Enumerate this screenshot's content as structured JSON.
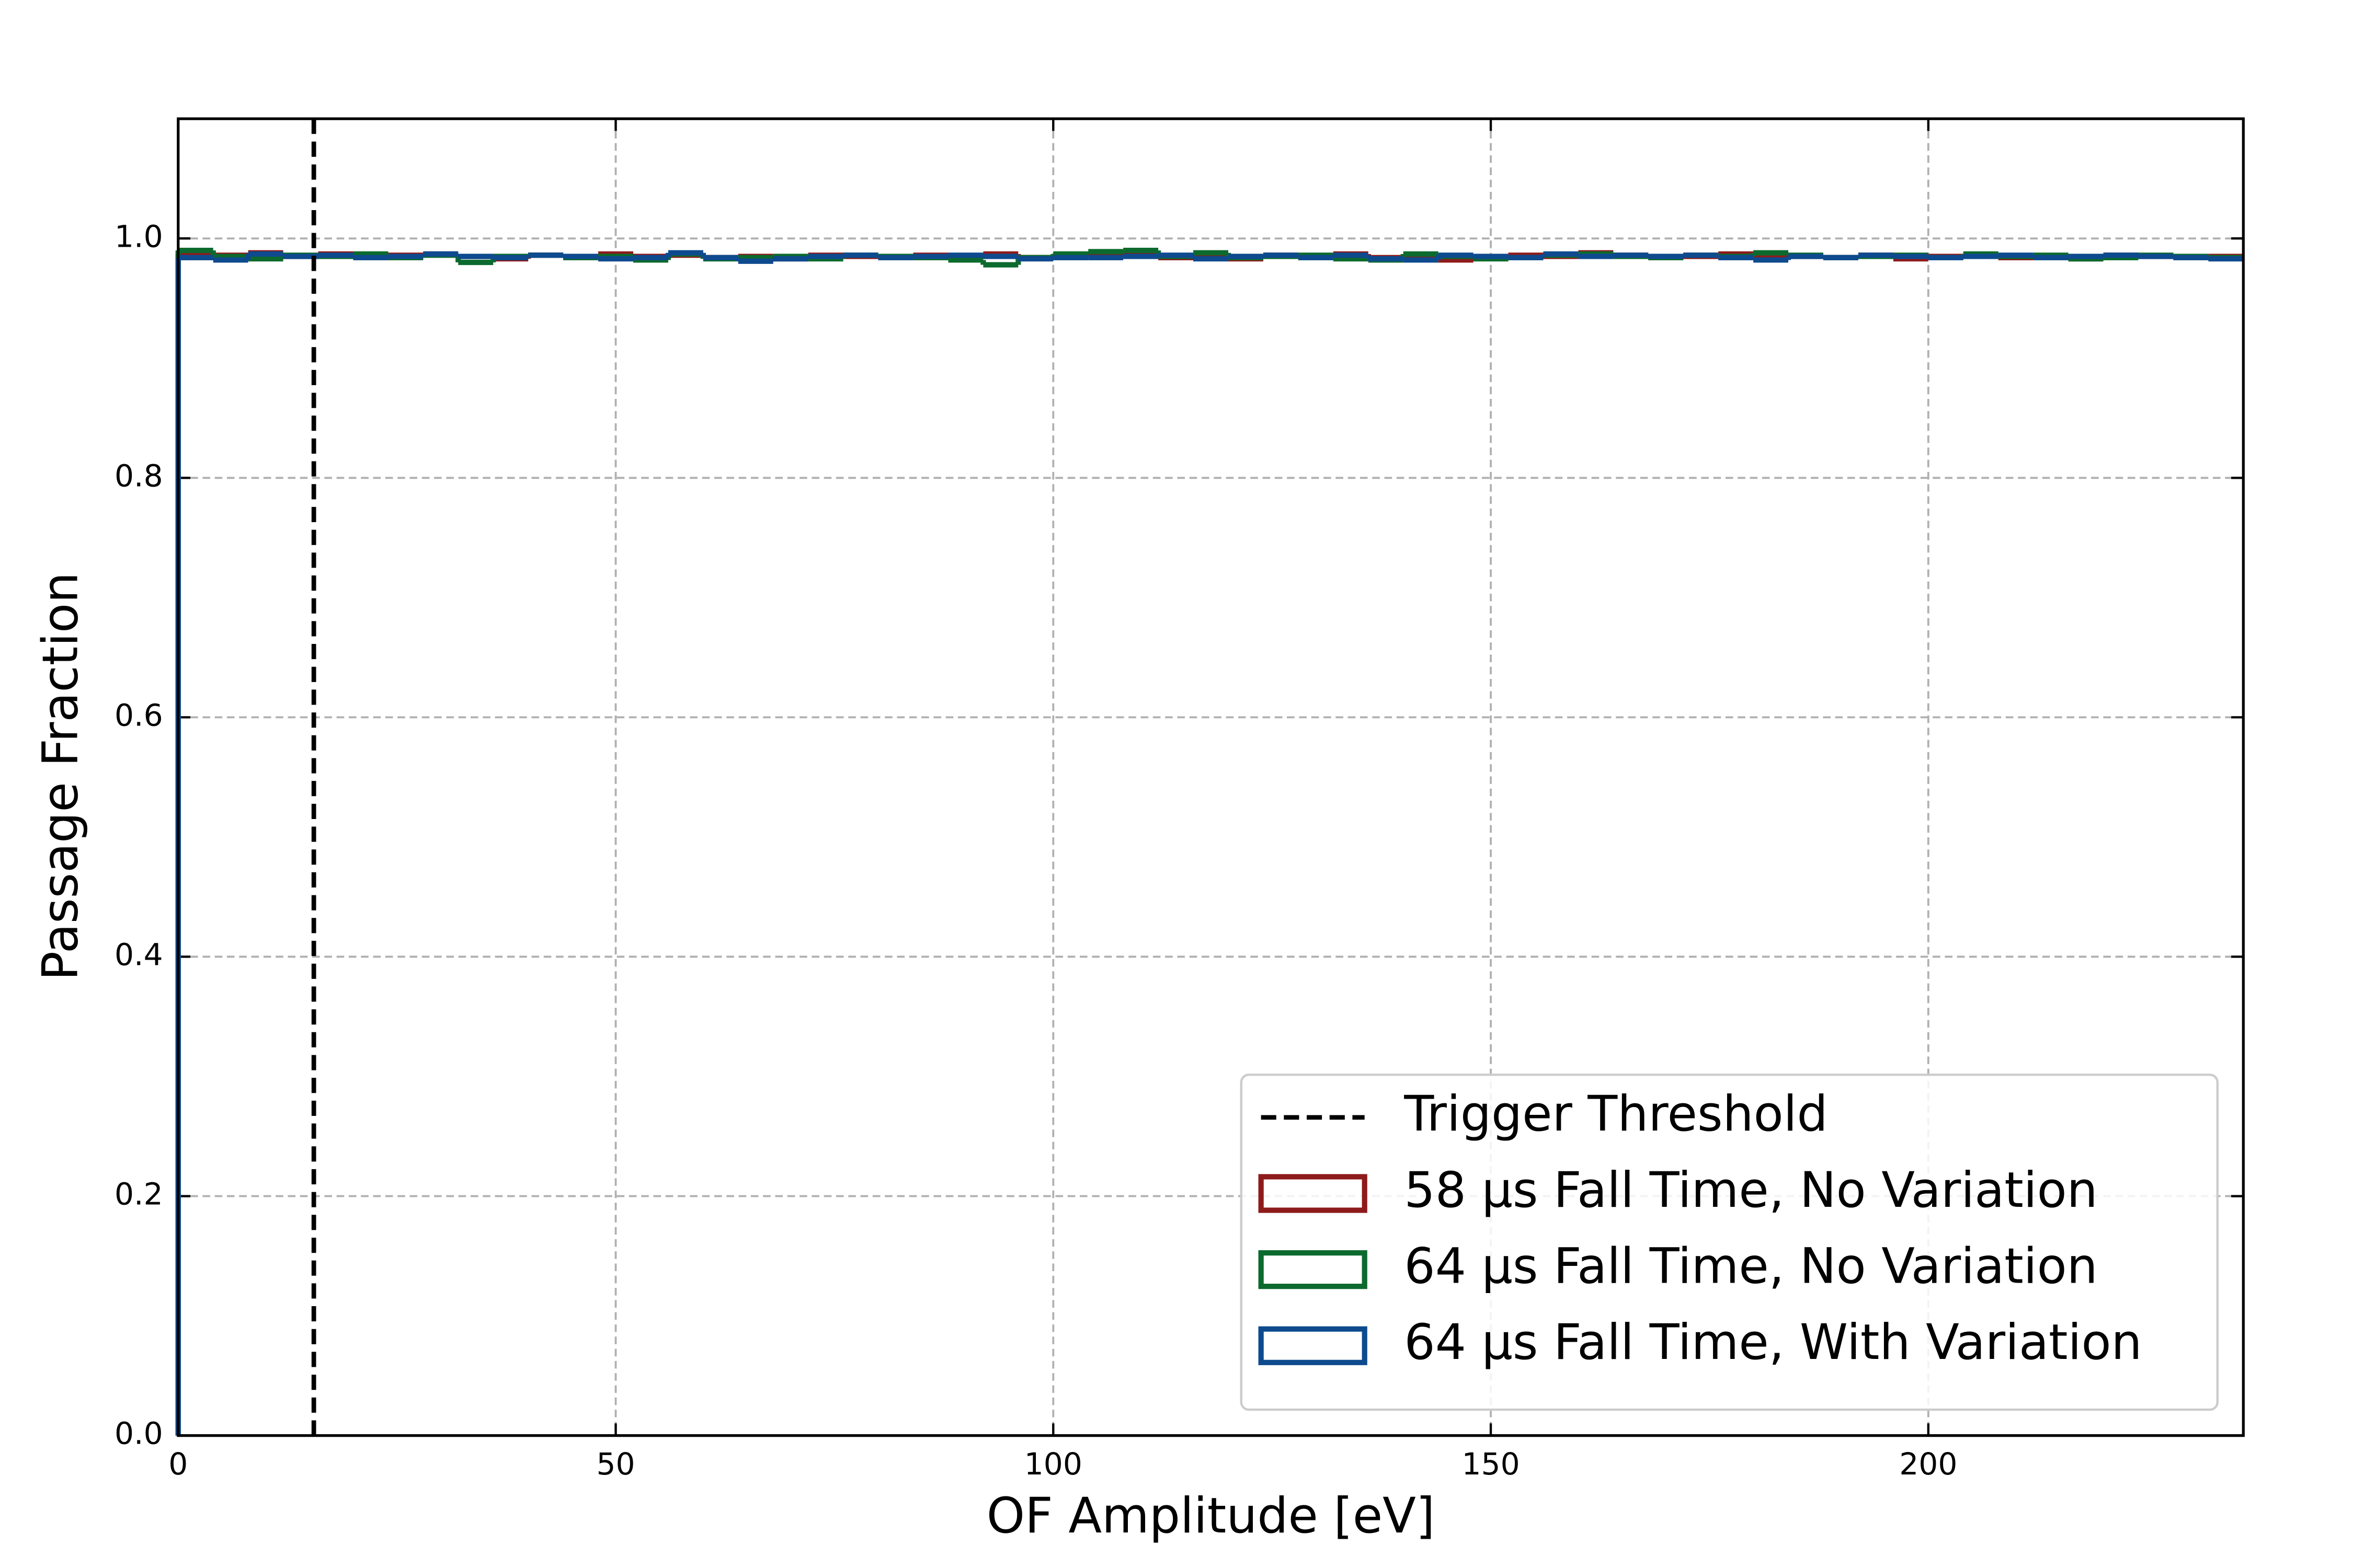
{
  "chart_data": {
    "type": "step-histogram",
    "xlabel": "OF Amplitude [eV]",
    "ylabel": "Passage Fraction",
    "xlim": [
      0,
      236
    ],
    "ylim": [
      0,
      1.1
    ],
    "xticks": [
      0,
      50,
      100,
      150,
      200
    ],
    "yticks": [
      {
        "value": 0,
        "label": "0.0"
      },
      0.2,
      0.4,
      0.6,
      0.8,
      {
        "value": 1,
        "label": "1.0"
      }
    ],
    "grid": true,
    "legend": "lower right",
    "bins": [
      0,
      4,
      8,
      12,
      16,
      20,
      24,
      28,
      32,
      36,
      40,
      44,
      48,
      52,
      56,
      60,
      64,
      68,
      72,
      76,
      80,
      84,
      88,
      92,
      96,
      100,
      104,
      108,
      112,
      116,
      120,
      124,
      128,
      132,
      136,
      140,
      144,
      148,
      152,
      156,
      160,
      164,
      168,
      172,
      176,
      180,
      184,
      188,
      192,
      196,
      200,
      204,
      208,
      212,
      216,
      220,
      224,
      228,
      232,
      236
    ],
    "vlines": [
      {
        "x": 15.5,
        "label": "Trigger Threshold",
        "color": "#000000"
      }
    ],
    "series": [
      {
        "name": "58 µs Fall Time, No Variation",
        "color": "#8e1b1b",
        "values": [
          0.987,
          0.986,
          0.988,
          0.985,
          0.987,
          0.984,
          0.986,
          0.987,
          0.985,
          0.983,
          0.986,
          0.984,
          0.987,
          0.985,
          0.986,
          0.984,
          0.985,
          0.983,
          0.986,
          0.985,
          0.984,
          0.986,
          0.985,
          0.987,
          0.984,
          0.985,
          0.987,
          0.986,
          0.984,
          0.985,
          0.983,
          0.986,
          0.985,
          0.987,
          0.984,
          0.985,
          0.982,
          0.984,
          0.986,
          0.985,
          0.988,
          0.986,
          0.984,
          0.985,
          0.987,
          0.986,
          0.985,
          0.984,
          0.986,
          0.983,
          0.985,
          0.986,
          0.984,
          0.985,
          0.983,
          0.986,
          0.985,
          0.984,
          0.985
        ]
      },
      {
        "name": "64 µs Fall Time, No Variation",
        "color": "#0c6a2e",
        "values": [
          0.99,
          0.985,
          0.983,
          0.986,
          0.985,
          0.987,
          0.984,
          0.986,
          0.98,
          0.985,
          0.986,
          0.984,
          0.985,
          0.982,
          0.987,
          0.983,
          0.984,
          0.985,
          0.983,
          0.986,
          0.985,
          0.984,
          0.982,
          0.978,
          0.984,
          0.987,
          0.989,
          0.99,
          0.985,
          0.988,
          0.984,
          0.985,
          0.986,
          0.983,
          0.982,
          0.987,
          0.985,
          0.983,
          0.984,
          0.986,
          0.987,
          0.985,
          0.984,
          0.986,
          0.985,
          0.988,
          0.986,
          0.984,
          0.985,
          0.986,
          0.984,
          0.987,
          0.985,
          0.986,
          0.983,
          0.984,
          0.986,
          0.985,
          0.984
        ]
      },
      {
        "name": "64 µs Fall Time, With Variation",
        "color": "#0e4a8e",
        "values": [
          0.984,
          0.982,
          0.987,
          0.985,
          0.986,
          0.984,
          0.985,
          0.987,
          0.985,
          0.984,
          0.986,
          0.985,
          0.983,
          0.984,
          0.988,
          0.984,
          0.981,
          0.983,
          0.985,
          0.986,
          0.984,
          0.985,
          0.986,
          0.985,
          0.983,
          0.984,
          0.984,
          0.985,
          0.986,
          0.983,
          0.985,
          0.986,
          0.984,
          0.986,
          0.983,
          0.982,
          0.986,
          0.985,
          0.984,
          0.987,
          0.985,
          0.986,
          0.985,
          0.986,
          0.984,
          0.982,
          0.985,
          0.984,
          0.986,
          0.985,
          0.984,
          0.985,
          0.986,
          0.984,
          0.985,
          0.986,
          0.985,
          0.984,
          0.983
        ]
      }
    ]
  }
}
